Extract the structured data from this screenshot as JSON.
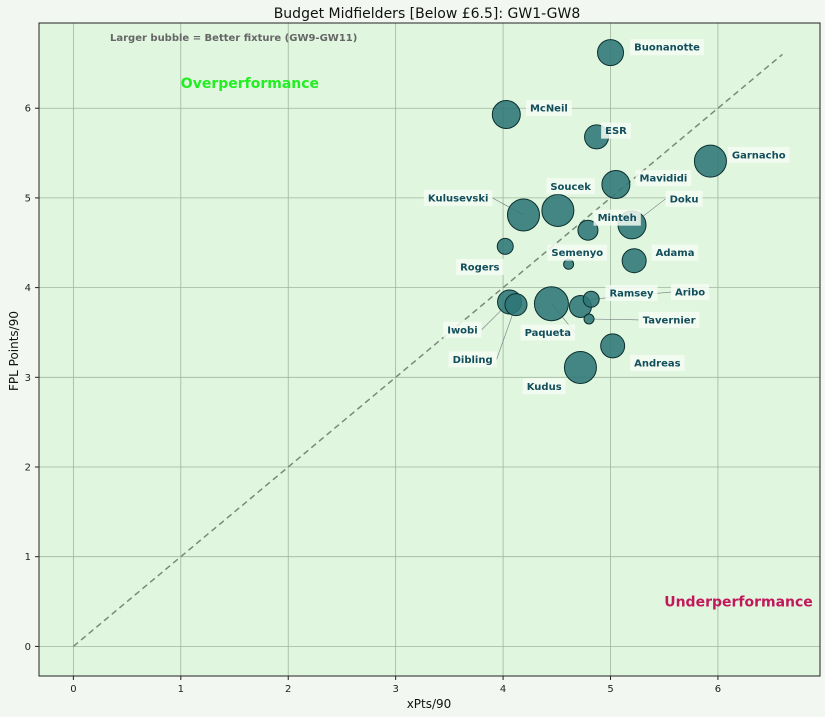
{
  "chart_data": {
    "type": "scatter",
    "title": "Budget Midfielders [Below £6.5]: GW1-GW8",
    "xlabel": "xPts/90",
    "ylabel": "FPL Points/90",
    "xlim": [
      -0.32,
      6.95
    ],
    "ylim": [
      -0.33,
      6.95
    ],
    "xticks": [
      0,
      1,
      2,
      3,
      4,
      5,
      6
    ],
    "yticks": [
      0,
      1,
      2,
      3,
      4,
      5,
      6
    ],
    "grid": true,
    "reference_line": {
      "x": [
        0,
        6.6
      ],
      "y": [
        0,
        6.6
      ]
    },
    "annotation_note": "Larger bubble = Better fixture (GW9-GW11)",
    "regions": {
      "over": {
        "text": "Overperformance",
        "x": 1.0,
        "y": 6.28,
        "color": "#22ee22"
      },
      "under": {
        "text": "Underperformance",
        "x": 5.5,
        "y": 0.5,
        "color": "#c2185b"
      }
    },
    "bubble_color": "#2d7676",
    "label_color": "#124e5c",
    "points": [
      {
        "name": "Buonanotte",
        "x": 5.0,
        "y": 6.62,
        "size": 13,
        "lx": 5.22,
        "ly": 6.68
      },
      {
        "name": "McNeil",
        "x": 4.03,
        "y": 5.93,
        "size": 14,
        "lx": 4.25,
        "ly": 6.0
      },
      {
        "name": "ESR",
        "x": 4.87,
        "y": 5.68,
        "size": 12,
        "lx": 4.95,
        "ly": 5.75
      },
      {
        "name": "Garnacho",
        "x": 5.93,
        "y": 5.41,
        "size": 16,
        "lx": 6.13,
        "ly": 5.48
      },
      {
        "name": "Mavididi",
        "x": 5.05,
        "y": 5.15,
        "size": 14,
        "lx": 5.27,
        "ly": 5.22
      },
      {
        "name": "Soucek",
        "x": 4.51,
        "y": 4.86,
        "size": 16,
        "lx": 4.44,
        "ly": 5.13
      },
      {
        "name": "Kulusevski",
        "x": 4.19,
        "y": 4.81,
        "size": 16,
        "lx": 3.3,
        "ly": 5.0,
        "leader": true
      },
      {
        "name": "Doku",
        "x": 5.2,
        "y": 4.7,
        "size": 14,
        "lx": 5.55,
        "ly": 4.99,
        "leader": true
      },
      {
        "name": "Minteh",
        "x": 4.79,
        "y": 4.64,
        "size": 10,
        "lx": 4.88,
        "ly": 4.78
      },
      {
        "name": "Rogers",
        "x": 4.02,
        "y": 4.46,
        "size": 8,
        "lx": 3.6,
        "ly": 4.23
      },
      {
        "name": "Semenyo",
        "x": 4.61,
        "y": 4.26,
        "size": 5,
        "lx": 4.45,
        "ly": 4.39
      },
      {
        "name": "Adama",
        "x": 5.22,
        "y": 4.3,
        "size": 12,
        "lx": 5.42,
        "ly": 4.39
      },
      {
        "name": "Aribo",
        "x": 4.82,
        "y": 3.87,
        "size": 8,
        "lx": 5.6,
        "ly": 3.95,
        "leader": true
      },
      {
        "name": "Ramsey",
        "x": 4.72,
        "y": 3.79,
        "size": 11,
        "lx": 4.99,
        "ly": 3.94
      },
      {
        "name": "Tavernier",
        "x": 4.8,
        "y": 3.65,
        "size": 5,
        "lx": 5.3,
        "ly": 3.64,
        "leader": true
      },
      {
        "name": "Paqueta",
        "x": 4.45,
        "y": 3.82,
        "size": 17,
        "lx": 4.2,
        "ly": 3.5,
        "leader": true
      },
      {
        "name": "Iwobi",
        "x": 4.06,
        "y": 3.84,
        "size": 12,
        "lx": 3.48,
        "ly": 3.53,
        "leader": true
      },
      {
        "name": "Dibling",
        "x": 4.12,
        "y": 3.81,
        "size": 11,
        "lx": 3.53,
        "ly": 3.2,
        "leader": true
      },
      {
        "name": "Andreas",
        "x": 5.02,
        "y": 3.35,
        "size": 12,
        "lx": 5.22,
        "ly": 3.16
      },
      {
        "name": "Kudus",
        "x": 4.72,
        "y": 3.11,
        "size": 16,
        "lx": 4.22,
        "ly": 2.9
      }
    ]
  }
}
